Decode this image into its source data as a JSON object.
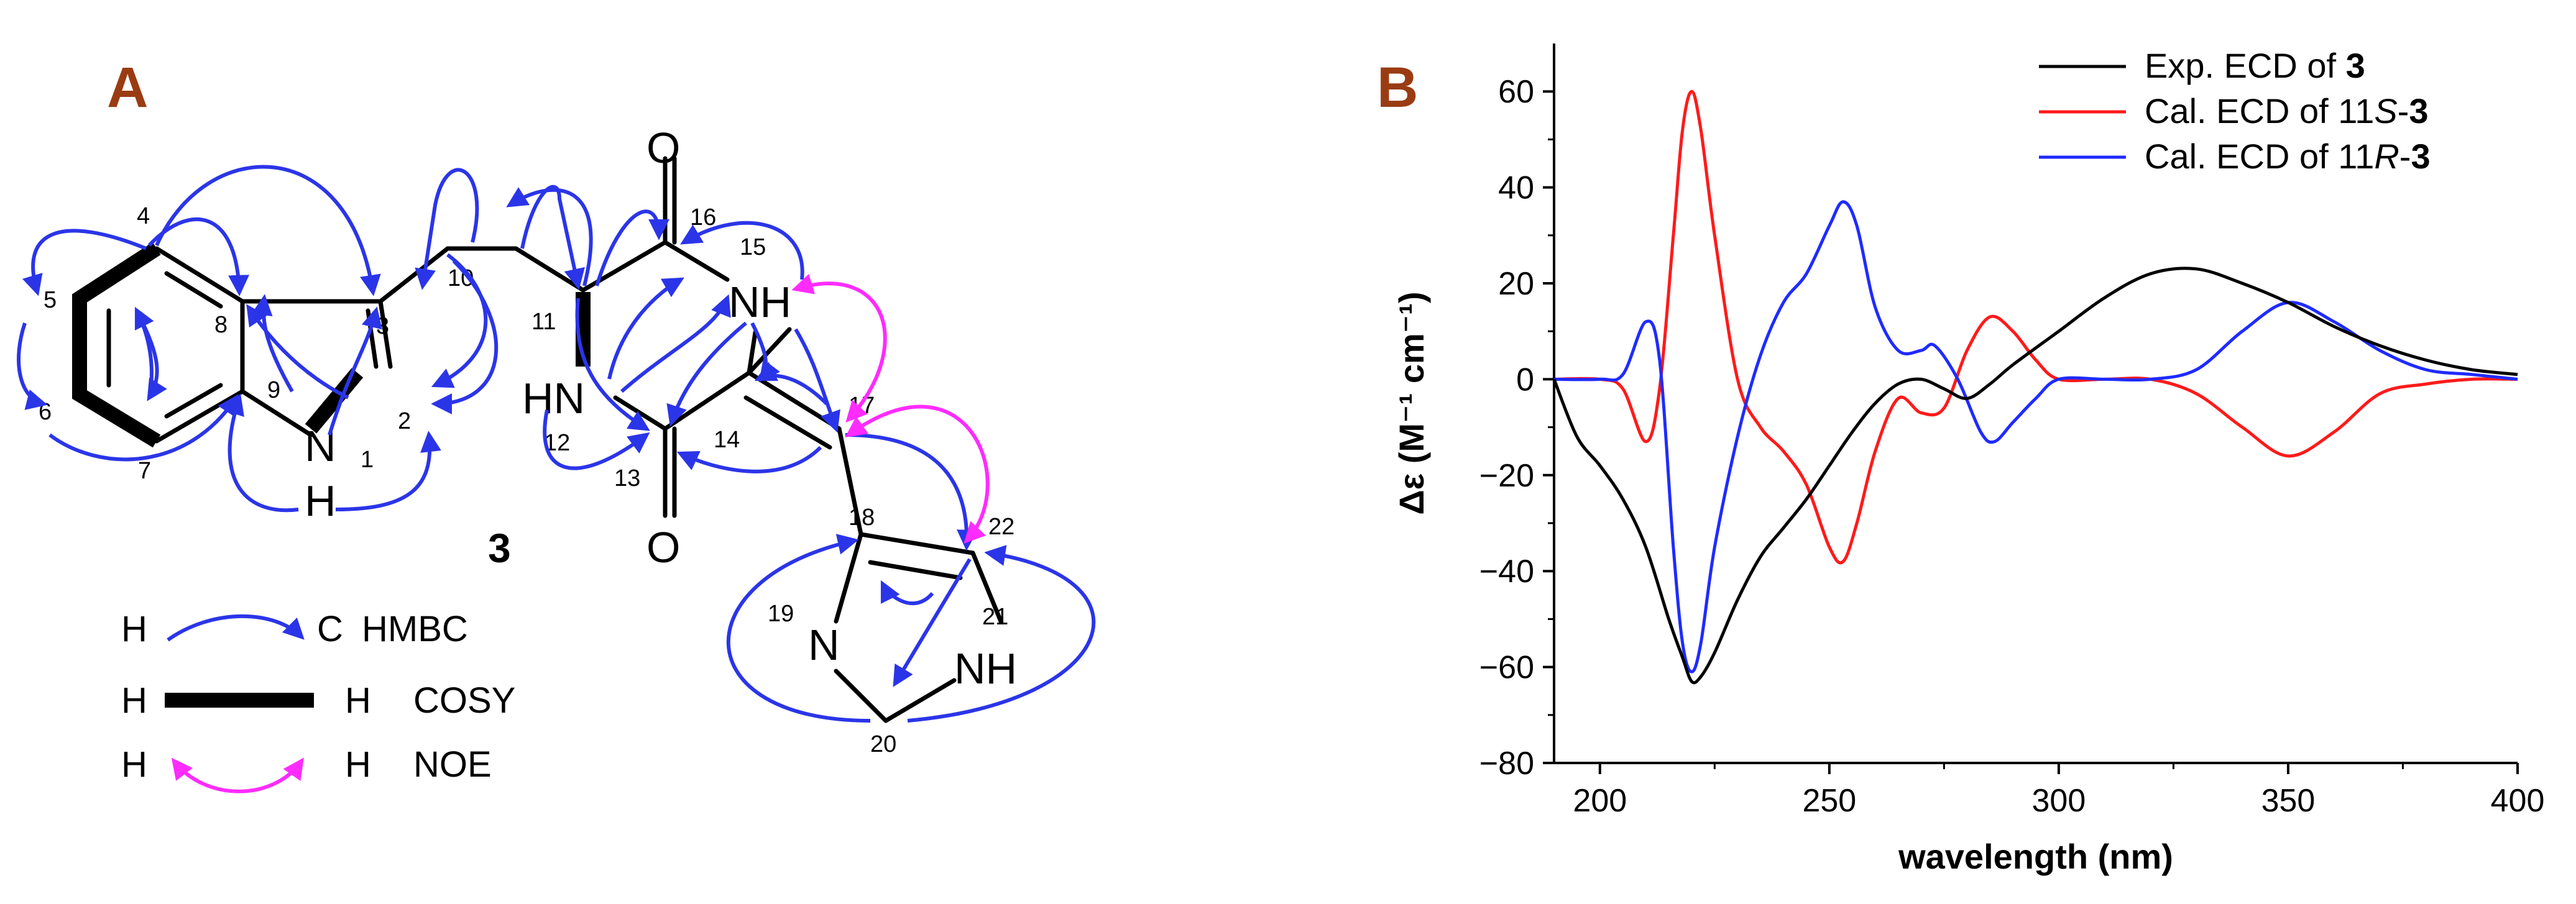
{
  "panels": {
    "a": {
      "label": "A",
      "compound": "3"
    },
    "b": {
      "label": "B"
    }
  },
  "colors": {
    "panel_label": "#9a3b12",
    "hmbc": "#2b35e8",
    "cosy": "#000000",
    "noe": "#ff2bff",
    "exp": "#000000",
    "cal11S": "#ff1a1a",
    "cal11R": "#1f2bff"
  },
  "structure": {
    "atoms": {
      "c2": "2",
      "c3": "3",
      "c4": "4",
      "c5": "5",
      "c6": "6",
      "c7": "7",
      "c8": "8",
      "c9": "9",
      "c10": "10",
      "c11": "11",
      "n12": "12",
      "c13": "13",
      "c14": "14",
      "n15": "15",
      "c16": "16",
      "c17": "17",
      "c18": "18",
      "n19": "19",
      "c20": "20",
      "n21": "21",
      "c22": "22",
      "n1": "1"
    },
    "heteroatoms": {
      "indole_n": "N",
      "indole_h": "H",
      "o16": "O",
      "o13": "O",
      "nh15": "NH",
      "hn12": "HN",
      "n19": "N",
      "nh21": "NH"
    },
    "legend": [
      {
        "left": "H",
        "right": "C",
        "name": "HMBC",
        "style": "hmbc"
      },
      {
        "left": "H",
        "right": "H",
        "name": "COSY",
        "style": "cosy"
      },
      {
        "left": "H",
        "right": "H",
        "name": "NOE",
        "style": "noe"
      }
    ]
  },
  "chart_data": {
    "type": "line",
    "xlabel": "wavelength (nm)",
    "ylabel": "Δε (M⁻¹ cm⁻¹)",
    "xlim": [
      190,
      400
    ],
    "ylim": [
      -80,
      70
    ],
    "xticks": [
      200,
      250,
      300,
      350,
      400
    ],
    "yticks": [
      -80,
      -60,
      -40,
      -20,
      0,
      20,
      40,
      60
    ],
    "xtick_labels": [
      "200",
      "250",
      "300",
      "350",
      "400"
    ],
    "ytick_labels": [
      "−80",
      "−60",
      "−40",
      "−20",
      "0",
      "20",
      "40",
      "60"
    ],
    "grid": false,
    "legend_position": "top-right",
    "series": [
      {
        "name": "Exp. ECD of 3",
        "color": "#000000",
        "x": [
          190,
          195,
          200,
          205,
          210,
          215,
          218,
          220,
          222,
          225,
          230,
          235,
          240,
          245,
          250,
          255,
          260,
          265,
          270,
          275,
          280,
          285,
          290,
          300,
          310,
          320,
          330,
          340,
          350,
          360,
          370,
          380,
          390,
          400
        ],
        "y": [
          0,
          -12,
          -18,
          -25,
          -35,
          -50,
          -58,
          -63,
          -62,
          -57,
          -46,
          -37,
          -31,
          -25,
          -18,
          -11,
          -5,
          -1,
          0,
          -2,
          -4,
          -1,
          3,
          10,
          17,
          22,
          23,
          20,
          16,
          11,
          7,
          4,
          2,
          1
        ]
      },
      {
        "name": "Cal. ECD of 11S-3",
        "color": "#ff1a1a",
        "x": [
          190,
          200,
          205,
          210,
          213,
          216,
          218,
          220,
          222,
          225,
          230,
          235,
          240,
          245,
          250,
          253,
          256,
          260,
          265,
          270,
          275,
          280,
          285,
          290,
          295,
          300,
          310,
          320,
          330,
          340,
          350,
          360,
          370,
          380,
          390,
          400
        ],
        "y": [
          0,
          0,
          -2,
          -13,
          -2,
          30,
          52,
          60,
          52,
          30,
          0,
          -10,
          -15,
          -22,
          -35,
          -38,
          -30,
          -15,
          -4,
          -7,
          -6,
          6,
          13,
          10,
          4,
          0,
          0,
          0,
          -3,
          -10,
          -16,
          -11,
          -3,
          -1,
          0,
          0
        ]
      },
      {
        "name": "Cal. ECD of 11R-3",
        "color": "#1f2bff",
        "x": [
          190,
          200,
          205,
          210,
          213,
          216,
          218,
          220,
          222,
          225,
          230,
          235,
          240,
          245,
          250,
          253,
          256,
          260,
          265,
          270,
          273,
          278,
          283,
          286,
          290,
          295,
          300,
          310,
          320,
          330,
          340,
          350,
          360,
          370,
          380,
          390,
          400
        ],
        "y": [
          0,
          0,
          1,
          12,
          4,
          -35,
          -55,
          -61,
          -55,
          -35,
          -12,
          5,
          16,
          22,
          32,
          37,
          32,
          15,
          6,
          6,
          7,
          0,
          -11,
          -13,
          -9,
          -4,
          0,
          0,
          0,
          2,
          10,
          16,
          12,
          6,
          2,
          1,
          0
        ]
      }
    ],
    "legend_entries": [
      {
        "prefix": "Exp. ECD of ",
        "bold": "3",
        "italic": "",
        "suffix": ""
      },
      {
        "prefix": "Cal. ECD of 11",
        "italic": "S",
        "mid": "-",
        "bold": "3"
      },
      {
        "prefix": "Cal. ECD of 11",
        "italic": "R",
        "mid": "-",
        "bold": "3"
      }
    ]
  }
}
